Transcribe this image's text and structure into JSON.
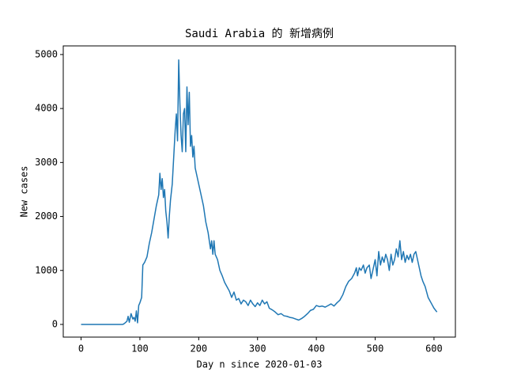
{
  "chart_data": {
    "type": "line",
    "title": "Saudi Arabia 的 新增病例",
    "xlabel": "Day n since 2020-01-03",
    "ylabel": "New cases",
    "xlim": [
      -30.3,
      636.4
    ],
    "ylim": [
      -235,
      5160
    ],
    "xticks": [
      0,
      100,
      200,
      300,
      400,
      500,
      600
    ],
    "yticks": [
      0,
      1000,
      2000,
      3000,
      4000,
      5000
    ],
    "series": [
      {
        "name": "New cases",
        "color": "#1f77b4",
        "x": [
          0,
          30,
          70,
          72,
          75,
          78,
          80,
          82,
          85,
          88,
          90,
          92,
          94,
          96,
          98,
          100,
          103,
          105,
          108,
          112,
          116,
          120,
          124,
          128,
          132,
          134,
          136,
          138,
          140,
          142,
          144,
          146,
          148,
          150,
          152,
          155,
          158,
          160,
          162,
          164,
          166,
          168,
          170,
          172,
          174,
          176,
          178,
          180,
          182,
          184,
          186,
          188,
          190,
          192,
          194,
          196,
          200,
          204,
          208,
          212,
          216,
          220,
          222,
          224,
          226,
          228,
          232,
          236,
          240,
          244,
          248,
          252,
          256,
          260,
          264,
          268,
          272,
          276,
          280,
          284,
          288,
          292,
          296,
          300,
          304,
          308,
          312,
          316,
          320,
          325,
          330,
          335,
          340,
          345,
          350,
          355,
          360,
          365,
          370,
          375,
          380,
          385,
          390,
          395,
          400,
          405,
          410,
          415,
          420,
          425,
          430,
          435,
          440,
          445,
          450,
          455,
          460,
          465,
          468,
          470,
          473,
          476,
          480,
          483,
          486,
          490,
          493,
          496,
          500,
          503,
          506,
          509,
          512,
          515,
          518,
          521,
          524,
          527,
          530,
          533,
          536,
          539,
          542,
          545,
          548,
          551,
          554,
          557,
          560,
          563,
          566,
          569,
          572,
          575,
          578,
          581,
          585,
          590,
          595,
          600,
          605
        ],
        "values": [
          0,
          0,
          0,
          5,
          30,
          60,
          150,
          40,
          200,
          100,
          130,
          60,
          250,
          30,
          350,
          400,
          500,
          1100,
          1150,
          1250,
          1500,
          1700,
          1950,
          2200,
          2400,
          2800,
          2500,
          2700,
          2350,
          2500,
          2100,
          1900,
          1600,
          2000,
          2300,
          2600,
          3200,
          3600,
          3900,
          3400,
          4900,
          4100,
          3500,
          3200,
          3900,
          4000,
          3200,
          4400,
          3700,
          4300,
          3300,
          3500,
          3100,
          3300,
          2900,
          2800,
          2600,
          2400,
          2200,
          1900,
          1700,
          1400,
          1550,
          1300,
          1550,
          1300,
          1200,
          1000,
          900,
          780,
          700,
          620,
          500,
          600,
          450,
          480,
          380,
          450,
          420,
          350,
          450,
          380,
          330,
          400,
          350,
          450,
          380,
          420,
          300,
          270,
          230,
          180,
          200,
          160,
          150,
          130,
          120,
          100,
          80,
          110,
          150,
          200,
          260,
          280,
          350,
          330,
          340,
          320,
          350,
          380,
          340,
          400,
          450,
          550,
          700,
          800,
          850,
          950,
          1050,
          900,
          1050,
          1000,
          1100,
          950,
          1050,
          1100,
          850,
          1000,
          1200,
          900,
          1350,
          1100,
          1250,
          1150,
          1300,
          1200,
          1000,
          1300,
          1100,
          1200,
          1400,
          1250,
          1550,
          1200,
          1350,
          1150,
          1280,
          1200,
          1300,
          1150,
          1300,
          1350,
          1200,
          1050,
          900,
          800,
          700,
          500,
          400,
          300,
          230
        ]
      }
    ]
  }
}
